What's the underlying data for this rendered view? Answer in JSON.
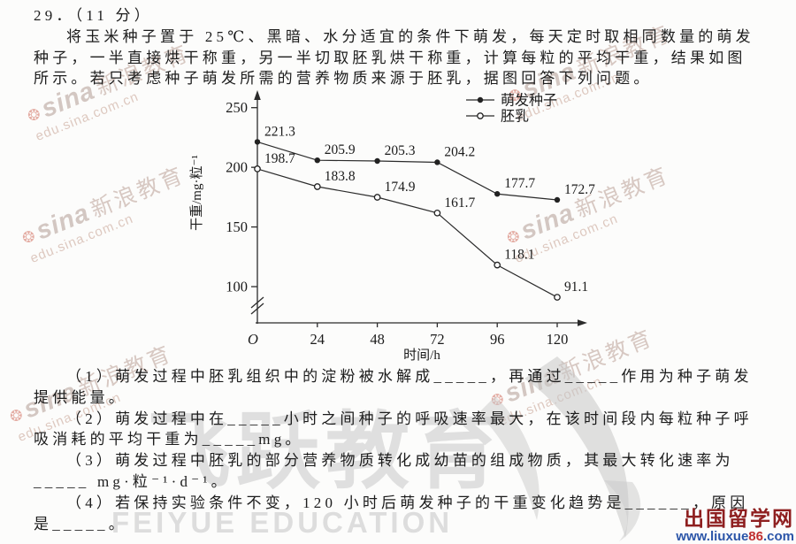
{
  "page": {
    "q_no": "29．（11 分）",
    "intro_lines": [
      "将玉米种子置于 25℃、黑暗、水分适宜的条件下萌发，每天定时取相同数量的萌发",
      "种子，一半直接烘干称重，另一半切取胚乳烘干称重，计算每粒的平均干重，结果如图",
      "所示。若只考虑种子萌发所需的营养物质来源于胚乳，据图回答下列问题。"
    ],
    "question_lines": [
      "（1）萌发过程中胚乳组织中的淀粉被水解成_____，再通过_____作用为种子萌发",
      "提供能量。",
      "（2）萌发过程中在_____小时之间种子的呼吸速率最大，在该时间段内每粒种子呼",
      "吸消耗的平均干重为_____mg。",
      "（3）萌发过程中胚乳的部分营养物质转化成幼苗的组成物质，其最大转化速率为",
      "_____ mg·粒⁻¹·d⁻¹。",
      "（4）若保持实验条件不变，120 小时后萌发种子的干重变化趋势是______，原因",
      "是_____。"
    ]
  },
  "chart_data": {
    "type": "line",
    "title": "",
    "xlabel": "时间/h",
    "ylabel": "干重/mg·粒⁻¹",
    "x": [
      0,
      24,
      48,
      72,
      96,
      120
    ],
    "x_ticks": [
      24,
      48,
      72,
      96,
      120
    ],
    "origin_label": "O",
    "y_ticks": [
      100,
      150,
      200,
      250
    ],
    "ylim": [
      85,
      260
    ],
    "axis_break": true,
    "grid": false,
    "legend_position": "top-right",
    "series": [
      {
        "name": "萌发种子",
        "marker": "filled-circle",
        "values": [
          221.3,
          205.9,
          205.3,
          204.2,
          177.7,
          172.7
        ]
      },
      {
        "name": "胚乳",
        "marker": "open-circle",
        "values": [
          198.7,
          183.8,
          174.9,
          161.7,
          118.1,
          91.1
        ]
      }
    ]
  },
  "watermarks": {
    "sina": {
      "brand": "sina",
      "brand_cn": "新浪教育",
      "url": "edu.sina.com.cn"
    },
    "feiyue": {
      "cn": "飞跃教育",
      "en": "FEIYUE EDUCATION"
    }
  },
  "source_logo": {
    "site_name": "出国留学网",
    "url_www": "www.liuxue",
    "url_num": "86",
    "url_tld": ".com"
  }
}
